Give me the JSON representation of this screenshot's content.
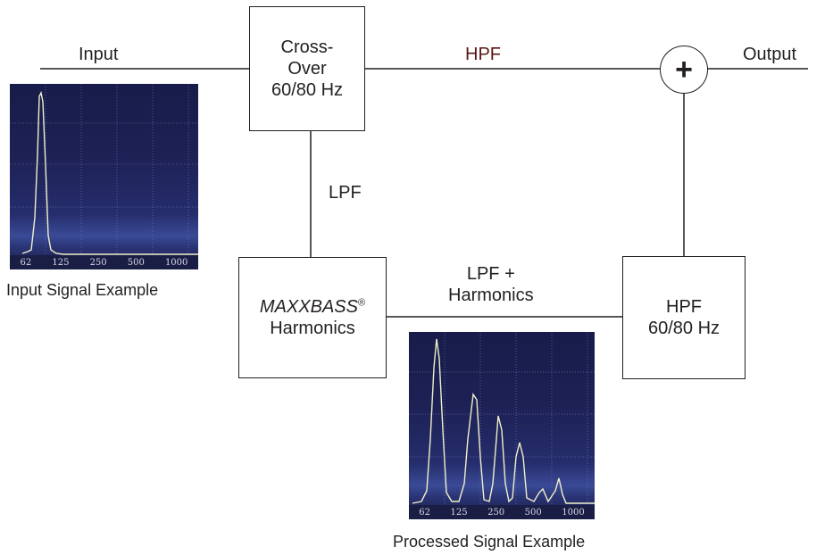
{
  "labels": {
    "input": "Input",
    "output": "Output",
    "hpf_top": "HPF",
    "lpf_vertical": "LPF",
    "lpf_harmonics_line1": "LPF +",
    "lpf_harmonics_line2": "Harmonics",
    "input_signal_caption": "Input Signal Example",
    "processed_signal_caption": "Processed Signal Example"
  },
  "boxes": {
    "crossover": {
      "line1": "Cross-",
      "line2": "Over",
      "line3": "60/80 Hz"
    },
    "maxxbass": {
      "brand": "MAXXBASS",
      "reg": "®",
      "line2": "Harmonics"
    },
    "hpf": {
      "line1": "HPF",
      "line2": "60/80 Hz"
    }
  },
  "summing_symbol": "+",
  "spectrum_ticks": [
    "62",
    "125",
    "250",
    "500",
    "1000"
  ],
  "colors": {
    "line": "#231f20",
    "hpf_label": "#5a1616",
    "spectrum_bg": "#1d2155",
    "spectrum_trace": "#f0f0c8"
  }
}
